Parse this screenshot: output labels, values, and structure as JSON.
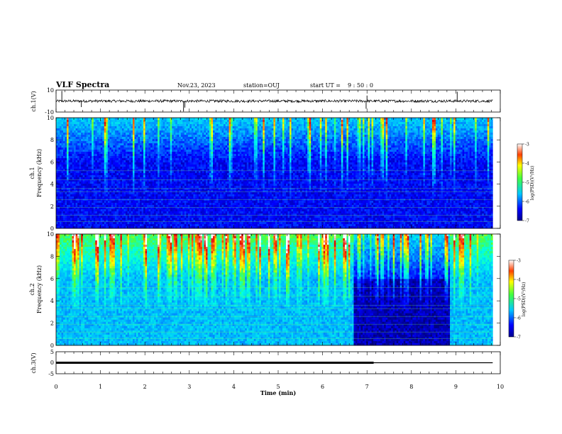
{
  "header": {
    "title": "VLF Spectra",
    "date": "Nov.23, 2023",
    "station": "station=OUJ",
    "start_label": "start  UT =",
    "start_time": "9 : 50 : 0"
  },
  "chart_data": [
    {
      "id": "ch1_waveform",
      "type": "line",
      "ylabel": "ch.1(V)",
      "yticks": [
        "10",
        "-10"
      ],
      "ylim": [
        -10,
        10
      ],
      "trace_color": "#000000",
      "noise_amplitude": 1.2,
      "spikes": [
        {
          "t": 0.13,
          "v": 9.2
        },
        {
          "t": 0.57,
          "v": -5.5
        },
        {
          "t": 2.87,
          "v": -9.5
        },
        {
          "t": 2.9,
          "v": -6.0
        },
        {
          "t": 6.98,
          "v": -7.0
        },
        {
          "t": 7.0,
          "v": 5.0
        },
        {
          "t": 9.03,
          "v": 8.5
        }
      ]
    },
    {
      "id": "ch1_spectrogram",
      "type": "heatmap",
      "ylabel_top": "ch.1",
      "ylabel": "Frequency (kHz)",
      "yticks": [
        "0",
        "2",
        "4",
        "6",
        "8",
        "10"
      ],
      "ylim": [
        0,
        10
      ],
      "xlim": [
        0,
        9.83
      ],
      "background_level": -6.4,
      "sferic_rate": 1.0,
      "colorbar": {
        "label": "log(PSD)(V²/Hz)",
        "ticks": [
          "-3",
          "-4",
          "-5",
          "-6",
          "-7"
        ],
        "range": [
          -7,
          -3
        ]
      }
    },
    {
      "id": "ch2_spectrogram",
      "type": "heatmap",
      "ylabel_top": "ch.2",
      "ylabel": "Frequency (kHz)",
      "yticks": [
        "0",
        "2",
        "4",
        "6",
        "8",
        "10"
      ],
      "ylim": [
        0,
        10
      ],
      "xlim": [
        0,
        9.83
      ],
      "background_level": -5.6,
      "sferic_rate": 1.6,
      "quiet_intervals": [
        [
          6.72,
          8.85
        ]
      ],
      "colorbar": {
        "label": "log(PSD)(V²/Hz)",
        "ticks": [
          "-3",
          "-4",
          "-5",
          "-6",
          "-7"
        ],
        "range": [
          -7,
          -3
        ]
      }
    },
    {
      "id": "ch3_waveform",
      "type": "line",
      "ylabel": "ch.3(V)",
      "yticks": [
        "5",
        "0",
        "-5"
      ],
      "ylim": [
        -5,
        5
      ],
      "level": 0,
      "thick_until": 7.15,
      "xlim": [
        0,
        9.83
      ]
    }
  ],
  "x_axis": {
    "label": "Time (min)",
    "ticks": [
      "0",
      "1",
      "2",
      "3",
      "4",
      "5",
      "6",
      "7",
      "8",
      "9",
      "10"
    ],
    "xlim": [
      0,
      10
    ]
  }
}
